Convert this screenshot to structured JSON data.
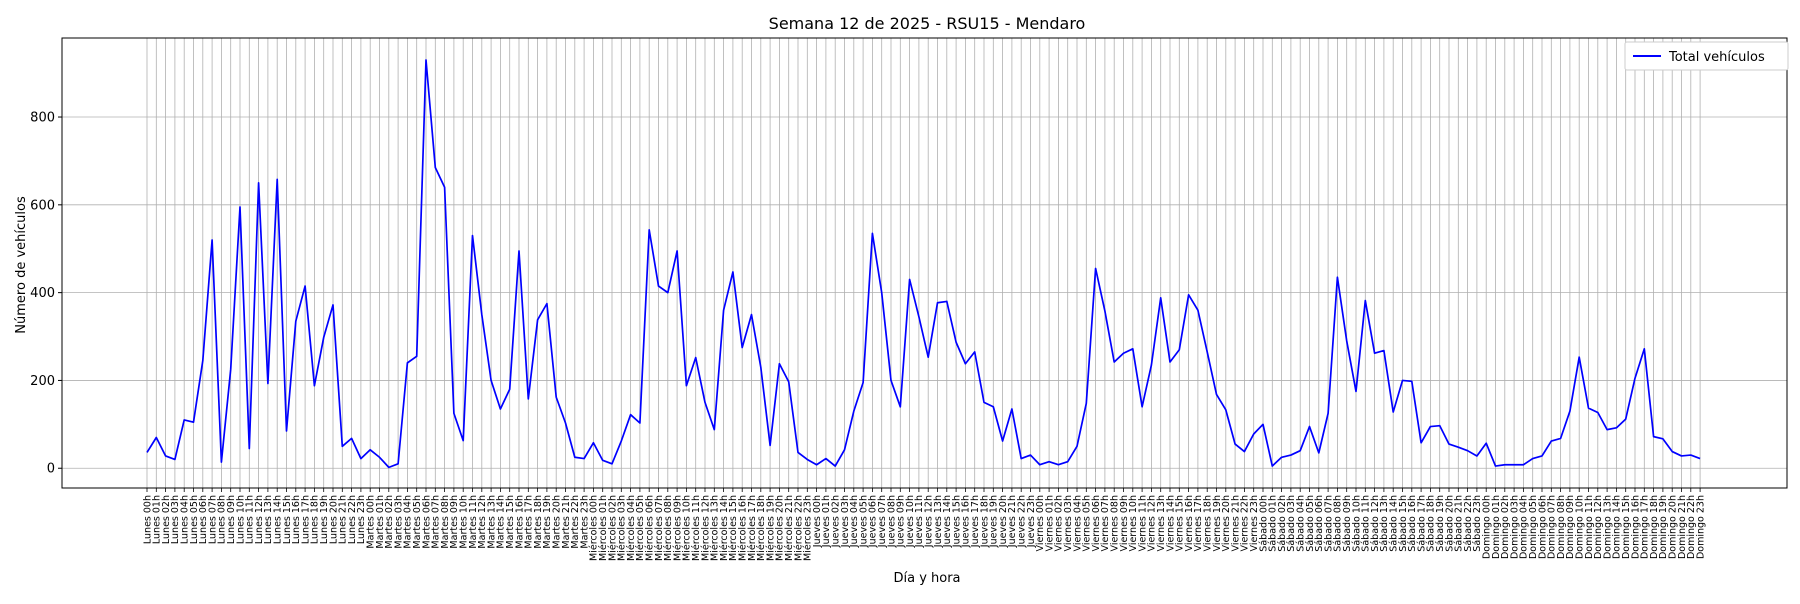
{
  "chart_data": {
    "type": "line",
    "title": "Semana 12 de 2025 - RSU15 - Mendaro",
    "xlabel": "Día y hora",
    "ylabel": "Número de vehículos",
    "ylim": [
      -45,
      980
    ],
    "yticks": [
      0,
      200,
      400,
      600,
      800
    ],
    "grid": true,
    "legend": {
      "position": "top-right"
    },
    "days": [
      "Lunes",
      "Martes",
      "Miércoles",
      "Jueves",
      "Viernes",
      "Sábado",
      "Domingo"
    ],
    "series": [
      {
        "name": "Total vehículos",
        "color": "#0000ff",
        "values": [
          36,
          70,
          28,
          20,
          110,
          105,
          245,
          520,
          14,
          225,
          595,
          45,
          650,
          193,
          658,
          85,
          335,
          415,
          188,
          298,
          372,
          50,
          68,
          22,
          42,
          25,
          2,
          10,
          240,
          255,
          930,
          685,
          640,
          125,
          63,
          530,
          350,
          200,
          135,
          180,
          495,
          158,
          338,
          375,
          162,
          103,
          25,
          22,
          58,
          18,
          10,
          62,
          122,
          103,
          543,
          415,
          400,
          495,
          188,
          252,
          150,
          88,
          360,
          447,
          275,
          350,
          230,
          52,
          238,
          197,
          36,
          20,
          8,
          22,
          5,
          42,
          130,
          195,
          535,
          400,
          200,
          140,
          430,
          345,
          253,
          377,
          380,
          287,
          238,
          265,
          150,
          140,
          62,
          135,
          22,
          30,
          8,
          15,
          8,
          15,
          50,
          148,
          455,
          358,
          242,
          262,
          272,
          140,
          235,
          388,
          242,
          270,
          395,
          360,
          265,
          168,
          133,
          55,
          38,
          78,
          100,
          5,
          25,
          30,
          40,
          95,
          35,
          125,
          435,
          290,
          175,
          382,
          262,
          268,
          128,
          200,
          198,
          58,
          95,
          97,
          55,
          48,
          40,
          28,
          57,
          5,
          8,
          8,
          8,
          22,
          28,
          62,
          68,
          130,
          253,
          137,
          127,
          88,
          92,
          112,
          205,
          272,
          72,
          67,
          38,
          28,
          30,
          22
        ]
      }
    ]
  }
}
